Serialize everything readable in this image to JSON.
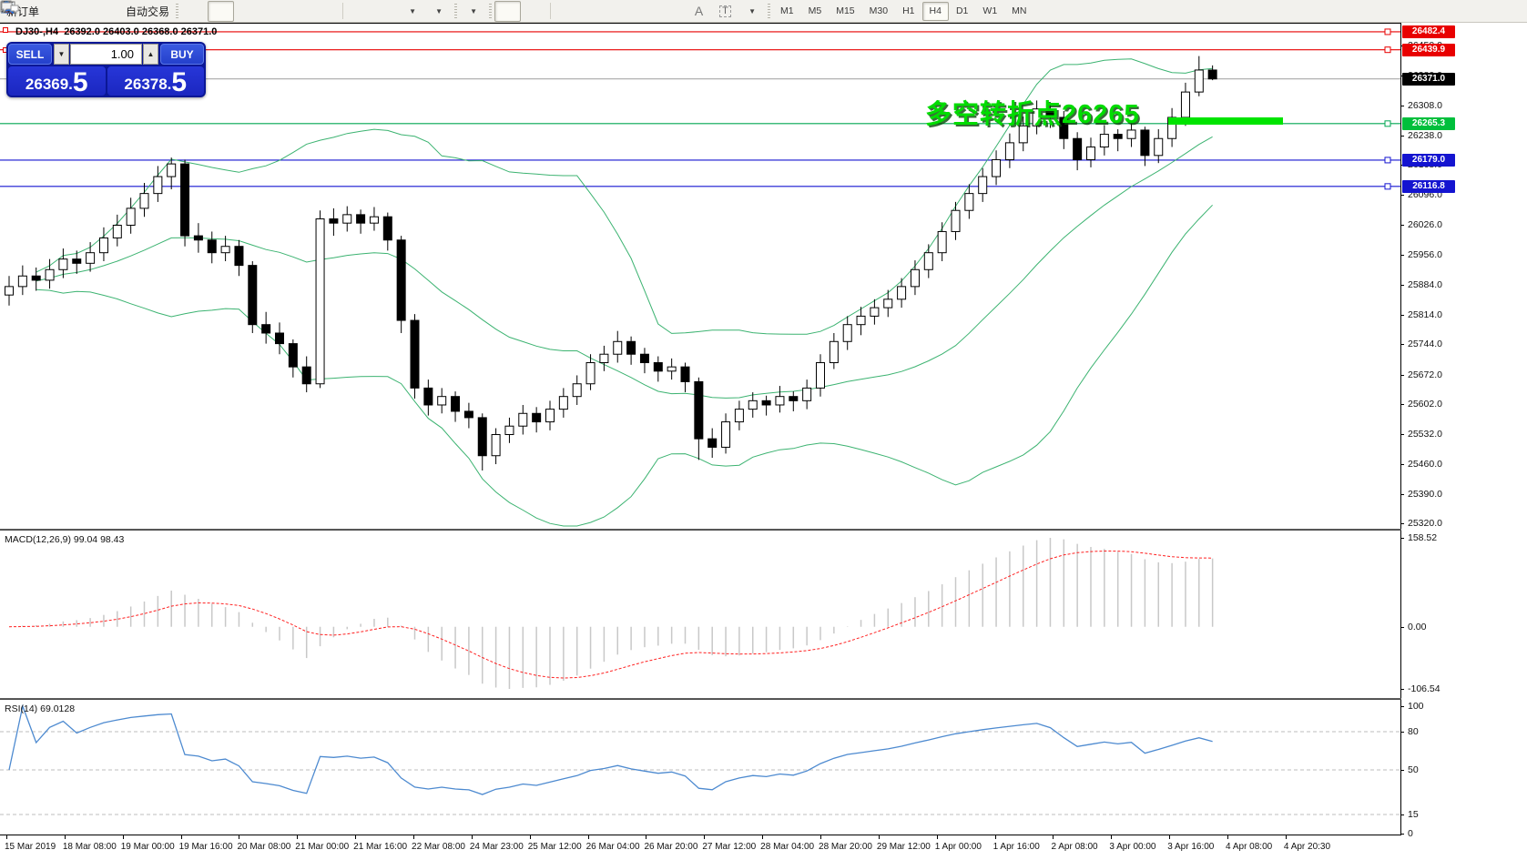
{
  "toolbar": {
    "new_order_label": "新订单",
    "autotrade_label": "自动交易",
    "timeframes": [
      "M1",
      "M5",
      "M15",
      "M30",
      "H1",
      "H4",
      "D1",
      "W1",
      "MN"
    ],
    "active_timeframe": "H4",
    "icons_left": [
      "new-order-icon",
      "gold-icon",
      "publisher-icon",
      "signal-icon",
      "autotrade-icon"
    ],
    "icons_chart": [
      "bar-chart-icon",
      "candlestick-icon",
      "line-chart-icon",
      "zoom-in-icon",
      "zoom-out-icon",
      "tile-windows-icon",
      "auto-scroll-icon",
      "chart-shift-icon",
      "new-chart-icon",
      "periods-icon",
      "templates-icon"
    ],
    "icons_tools": [
      "cursor-icon",
      "crosshair-icon",
      "vertical-line-icon",
      "horizontal-line-icon",
      "trendline-icon",
      "channel-icon",
      "fibonacci-icon",
      "text-icon",
      "text-label-icon",
      "arrows-icon"
    ],
    "icons_right": [
      "search-icon",
      "chat-icon"
    ]
  },
  "chart": {
    "title_symbol": "DJ30-,H4",
    "title_ohlc": "26392.0 26403.0 26368.0 26371.0"
  },
  "trade_panel": {
    "sell_label": "SELL",
    "buy_label": "BUY",
    "volume": "1.00",
    "sell_price": "26369.5",
    "buy_price": "26378.5"
  },
  "annotation": {
    "text": "多空转折点26265",
    "color": "#00DC00"
  },
  "time_axis": [
    "15 Mar 2019",
    "18 Mar 08:00",
    "19 Mar 00:00",
    "19 Mar 16:00",
    "20 Mar 08:00",
    "21 Mar 00:00",
    "21 Mar 16:00",
    "22 Mar 08:00",
    "24 Mar 23:00",
    "25 Mar 12:00",
    "26 Mar 04:00",
    "26 Mar 20:00",
    "27 Mar 12:00",
    "28 Mar 04:00",
    "28 Mar 20:00",
    "29 Mar 12:00",
    "1 Apr 00:00",
    "1 Apr 16:00",
    "2 Apr 08:00",
    "3 Apr 00:00",
    "3 Apr 16:00",
    "4 Apr 08:00",
    "4 Apr 20:30"
  ],
  "chart_data": [
    {
      "type": "candlestick",
      "symbol": "DJ30-",
      "timeframe": "H4",
      "ylim": [
        25309,
        26499
      ],
      "price_axis_ticks": [
        "26450.0",
        "26380.0",
        "26308.0",
        "26238.0",
        "26168.0",
        "26096.0",
        "26026.0",
        "25956.0",
        "25884.0",
        "25814.0",
        "25744.0",
        "25672.0",
        "25602.0",
        "25532.0",
        "25460.0",
        "25390.0",
        "25320.0"
      ],
      "levels": [
        {
          "price": 26482.4,
          "label": "26482.4",
          "line_color": "#E80000",
          "label_bg": "#E80000",
          "handles": true
        },
        {
          "price": 26439.9,
          "label": "26439.9",
          "line_color": "#E80000",
          "label_bg": "#E80000",
          "handles": true
        },
        {
          "price": 26371.0,
          "label": "26371.0",
          "line_color": "#A8A8A8",
          "label_bg": "#000000",
          "handles": false
        },
        {
          "price": 26265.3,
          "label": "26265.3",
          "line_color": "#00A651",
          "label_bg": "#00BF3C",
          "handles": true
        },
        {
          "price": 26179.0,
          "label": "26179.0",
          "line_color": "#1414D0",
          "label_bg": "#1414D0",
          "handles": true
        },
        {
          "price": 26116.8,
          "label": "26116.8",
          "line_color": "#1414D0",
          "label_bg": "#1414D0",
          "handles": true
        }
      ],
      "bollinger": {
        "period": 20,
        "deviation": 2,
        "color": "#3CB371"
      },
      "candles": [
        [
          25860,
          25905,
          25835,
          25880
        ],
        [
          25880,
          25930,
          25860,
          25905
        ],
        [
          25905,
          25925,
          25870,
          25895
        ],
        [
          25895,
          25945,
          25875,
          25920
        ],
        [
          25920,
          25970,
          25900,
          25945
        ],
        [
          25945,
          25965,
          25910,
          25935
        ],
        [
          25935,
          25985,
          25915,
          25960
        ],
        [
          25960,
          26020,
          25940,
          25995
        ],
        [
          25995,
          26050,
          25975,
          26025
        ],
        [
          26025,
          26090,
          26005,
          26065
        ],
        [
          26065,
          26125,
          26045,
          26100
        ],
        [
          26100,
          26165,
          26080,
          26140
        ],
        [
          26140,
          26185,
          26110,
          26170
        ],
        [
          26170,
          26180,
          25975,
          26000
        ],
        [
          26000,
          26030,
          25960,
          25990
        ],
        [
          25990,
          26010,
          25935,
          25960
        ],
        [
          25960,
          26000,
          25940,
          25975
        ],
        [
          25975,
          25990,
          25905,
          25930
        ],
        [
          25930,
          25940,
          25770,
          25790
        ],
        [
          25790,
          25820,
          25745,
          25770
        ],
        [
          25770,
          25795,
          25720,
          25745
        ],
        [
          25745,
          25755,
          25665,
          25690
        ],
        [
          25690,
          25715,
          25630,
          25650
        ],
        [
          25650,
          26060,
          25640,
          26040
        ],
        [
          26040,
          26065,
          26000,
          26030
        ],
        [
          26030,
          26070,
          26010,
          26050
        ],
        [
          26050,
          26062,
          26005,
          26030
        ],
        [
          26030,
          26068,
          26012,
          26045
        ],
        [
          26045,
          26055,
          25965,
          25990
        ],
        [
          25990,
          26000,
          25770,
          25800
        ],
        [
          25800,
          25815,
          25615,
          25640
        ],
        [
          25640,
          25660,
          25575,
          25600
        ],
        [
          25600,
          25640,
          25580,
          25620
        ],
        [
          25620,
          25632,
          25560,
          25585
        ],
        [
          25585,
          25605,
          25545,
          25570
        ],
        [
          25570,
          25580,
          25445,
          25480
        ],
        [
          25480,
          25545,
          25460,
          25530
        ],
        [
          25530,
          25570,
          25510,
          25550
        ],
        [
          25550,
          25600,
          25530,
          25580
        ],
        [
          25580,
          25595,
          25535,
          25560
        ],
        [
          25560,
          25610,
          25540,
          25590
        ],
        [
          25590,
          25640,
          25570,
          25620
        ],
        [
          25620,
          25670,
          25600,
          25650
        ],
        [
          25650,
          25720,
          25635,
          25700
        ],
        [
          25700,
          25740,
          25680,
          25720
        ],
        [
          25720,
          25775,
          25700,
          25750
        ],
        [
          25750,
          25762,
          25695,
          25720
        ],
        [
          25720,
          25735,
          25675,
          25700
        ],
        [
          25700,
          25715,
          25655,
          25680
        ],
        [
          25680,
          25710,
          25660,
          25690
        ],
        [
          25690,
          25700,
          25630,
          25655
        ],
        [
          25655,
          25665,
          25470,
          25520
        ],
        [
          25520,
          25545,
          25475,
          25500
        ],
        [
          25500,
          25580,
          25485,
          25560
        ],
        [
          25560,
          25610,
          25540,
          25590
        ],
        [
          25590,
          25630,
          25570,
          25610
        ],
        [
          25610,
          25622,
          25575,
          25600
        ],
        [
          25600,
          25645,
          25582,
          25620
        ],
        [
          25620,
          25632,
          25585,
          25610
        ],
        [
          25610,
          25660,
          25590,
          25640
        ],
        [
          25640,
          25720,
          25620,
          25700
        ],
        [
          25700,
          25770,
          25685,
          25750
        ],
        [
          25750,
          25810,
          25730,
          25790
        ],
        [
          25790,
          25832,
          25765,
          25810
        ],
        [
          25810,
          25850,
          25790,
          25830
        ],
        [
          25830,
          25872,
          25808,
          25850
        ],
        [
          25850,
          25900,
          25830,
          25880
        ],
        [
          25880,
          25942,
          25860,
          25920
        ],
        [
          25920,
          25980,
          25900,
          25960
        ],
        [
          25960,
          26032,
          25940,
          26010
        ],
        [
          26010,
          26080,
          25990,
          26060
        ],
        [
          26060,
          26122,
          26040,
          26100
        ],
        [
          26100,
          26160,
          26080,
          26140
        ],
        [
          26140,
          26202,
          26120,
          26180
        ],
        [
          26180,
          26242,
          26160,
          26220
        ],
        [
          26220,
          26282,
          26200,
          26260
        ],
        [
          26260,
          26320,
          26240,
          26300
        ],
        [
          26300,
          26315,
          26255,
          26280
        ],
        [
          26280,
          26295,
          26205,
          26230
        ],
        [
          26230,
          26245,
          26155,
          26180
        ],
        [
          26180,
          26232,
          26162,
          26210
        ],
        [
          26210,
          26262,
          26190,
          26240
        ],
        [
          26240,
          26252,
          26200,
          26230
        ],
        [
          26230,
          26272,
          26210,
          26250
        ],
        [
          26250,
          26258,
          26165,
          26190
        ],
        [
          26190,
          26252,
          26172,
          26230
        ],
        [
          26230,
          26302,
          26210,
          26280
        ],
        [
          26280,
          26362,
          26260,
          26340
        ],
        [
          26340,
          26425,
          26330,
          26392
        ],
        [
          26392,
          26403,
          26368,
          26371
        ]
      ]
    },
    {
      "type": "bar+line",
      "name": "MACD",
      "label": "MACD(12,26,9)",
      "values": "99.04 98.43",
      "params": [
        12,
        26,
        9
      ],
      "axis_labels": [
        "158.52",
        "0.00",
        "-106.54"
      ],
      "histogram_color": "#C8C8C8",
      "signal_color": "#FF2020"
    },
    {
      "type": "line",
      "name": "RSI",
      "label": "RSI(14)",
      "values": "69.0128",
      "period": 14,
      "levels": [
        80,
        50,
        15
      ],
      "axis_labels": [
        "100",
        "80",
        "50",
        "15",
        "0"
      ],
      "line_color": "#4D8AD0",
      "level_line_color": "#BDBDBD"
    }
  ]
}
